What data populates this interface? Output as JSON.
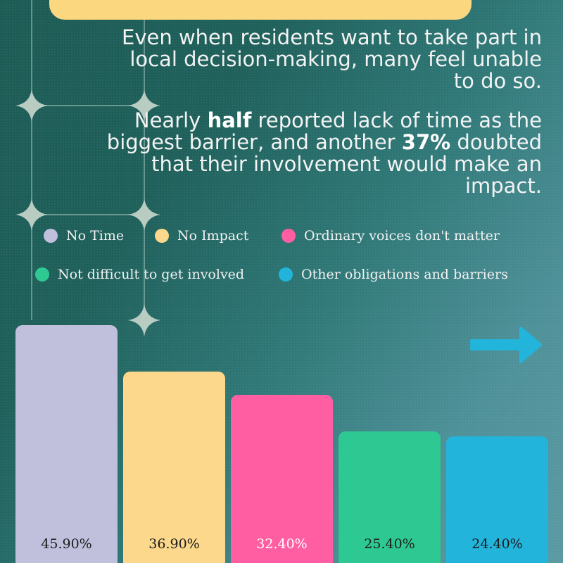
{
  "intro": {
    "para1": "Even when residents want to take part in local decision-making, many feel unable to do so.",
    "para2_parts": [
      "Nearly ",
      "half",
      " reported lack of time as the biggest barrier, and another ",
      "37%",
      " doubted that their involvement would make an impact."
    ]
  },
  "colors": {
    "no_time": "#c0c0dd",
    "no_impact": "#fbd88b",
    "ordinary_voices": "#ff5fa2",
    "not_difficult": "#2ec993",
    "other": "#23b4dc",
    "arrow": "#23b4dc",
    "banner": "#fbd77f"
  },
  "icons": {
    "arrow": "arrow-right-icon",
    "sparkle": "sparkle-icon"
  },
  "chart_data": {
    "type": "bar",
    "categories": [
      "No Time",
      "No Impact",
      "Ordinary voices don't matter",
      "Not difficult to get involved",
      "Other obligations and barriers"
    ],
    "values": [
      45.9,
      36.9,
      32.4,
      25.4,
      24.4
    ],
    "value_labels": [
      "45.90%",
      "36.90%",
      "32.40%",
      "25.40%",
      "24.40%"
    ],
    "title": "",
    "xlabel": "",
    "ylabel": "",
    "grid": false,
    "legend": {
      "position": "top",
      "items": [
        {
          "label": "No Time",
          "color": "#c0c0dd"
        },
        {
          "label": "No Impact",
          "color": "#fbd88b"
        },
        {
          "label": "Ordinary voices don't matter",
          "color": "#ff5fa2"
        },
        {
          "label": "Not difficult to get involved",
          "color": "#2ec993"
        },
        {
          "label": "Other obligations and barriers",
          "color": "#23b4dc"
        }
      ]
    }
  }
}
